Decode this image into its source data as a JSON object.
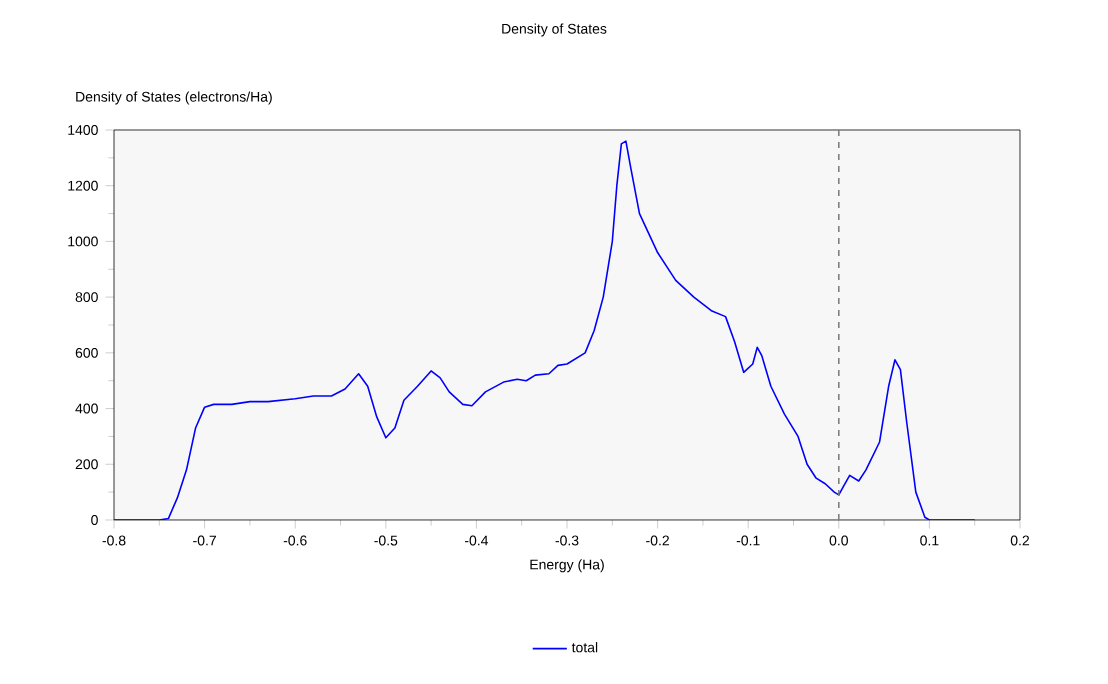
{
  "chart_data": {
    "type": "line",
    "title": "Density of States",
    "xlabel": "Energy (Ha)",
    "ylabel": "Density of States (electrons/Ha)",
    "xlim": [
      -0.8,
      0.2
    ],
    "xticks": [
      {
        "value": -0.8,
        "label": "-0.8"
      },
      {
        "value": -0.7,
        "label": "-0.7"
      },
      {
        "value": -0.6,
        "label": "-0.6"
      },
      {
        "value": -0.5,
        "label": "-0.5"
      },
      {
        "value": -0.4,
        "label": "-0.4"
      },
      {
        "value": -0.3,
        "label": "-0.3"
      },
      {
        "value": -0.2,
        "label": "-0.2"
      },
      {
        "value": -0.1,
        "label": "-0.1"
      },
      {
        "value": 0,
        "label": "0.0"
      },
      {
        "value": 0.1,
        "label": "0.1"
      },
      {
        "value": 0.2,
        "label": "0.2"
      }
    ],
    "ylim": [
      0,
      1400
    ],
    "yticks": [
      0,
      200,
      400,
      600,
      800,
      1000,
      1200,
      1400
    ],
    "grid": false,
    "legend": "bottom",
    "marker": "none",
    "line_style": "solid",
    "ref_lines": [
      {
        "axis": "x",
        "value": 0,
        "color": "#808080",
        "line_style": "dashed"
      }
    ],
    "x": [
      -0.8,
      -0.75,
      -0.74,
      -0.73,
      -0.72,
      -0.71,
      -0.7,
      -0.69,
      -0.67,
      -0.65,
      -0.63,
      -0.6,
      -0.58,
      -0.56,
      -0.545,
      -0.53,
      -0.52,
      -0.51,
      -0.5,
      -0.49,
      -0.48,
      -0.465,
      -0.45,
      -0.44,
      -0.43,
      -0.415,
      -0.405,
      -0.39,
      -0.37,
      -0.355,
      -0.345,
      -0.335,
      -0.32,
      -0.31,
      -0.3,
      -0.28,
      -0.27,
      -0.26,
      -0.25,
      -0.245,
      -0.24,
      -0.235,
      -0.23,
      -0.22,
      -0.2,
      -0.18,
      -0.16,
      -0.14,
      -0.125,
      -0.115,
      -0.105,
      -0.095,
      -0.09,
      -0.085,
      -0.075,
      -0.06,
      -0.045,
      -0.035,
      -0.025,
      -0.015,
      -0.005,
      0,
      0.005,
      0.012,
      0.022,
      0.03,
      0.045,
      0.055,
      0.062,
      0.068,
      0.075,
      0.085,
      0.095,
      0.1,
      0.15
    ],
    "series": [
      {
        "name": "total",
        "color": "#0000ff",
        "values": [
          0,
          0,
          5,
          80,
          180,
          330,
          405,
          415,
          415,
          425,
          425,
          435,
          445,
          445,
          470,
          525,
          480,
          370,
          295,
          330,
          430,
          480,
          535,
          510,
          460,
          415,
          410,
          460,
          495,
          505,
          500,
          520,
          525,
          555,
          560,
          600,
          680,
          800,
          1000,
          1200,
          1350,
          1360,
          1270,
          1100,
          960,
          860,
          800,
          750,
          730,
          640,
          530,
          560,
          620,
          590,
          480,
          380,
          300,
          200,
          150,
          130,
          100,
          90,
          120,
          160,
          140,
          180,
          280,
          480,
          575,
          540,
          350,
          100,
          10,
          0,
          0
        ]
      }
    ]
  }
}
